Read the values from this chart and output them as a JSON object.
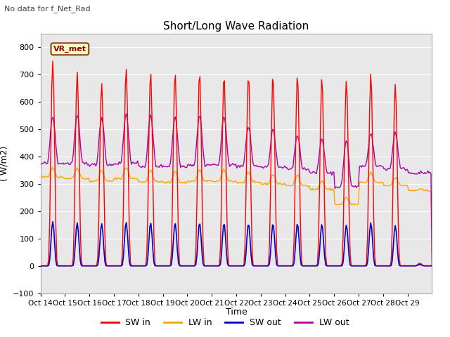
{
  "title": "Short/Long Wave Radiation",
  "subtitle": "No data for f_Net_Rad",
  "ylabel": "( W/m2)",
  "xlabel": "Time",
  "ylim": [
    -100,
    850
  ],
  "yticks": [
    -100,
    0,
    100,
    200,
    300,
    400,
    500,
    600,
    700,
    800
  ],
  "xtick_labels": [
    "Oct 14",
    "Oct 15",
    "Oct 16",
    "Oct 17",
    "Oct 18",
    "Oct 19",
    "Oct 20",
    "Oct 21",
    "Oct 22",
    "Oct 23",
    "Oct 24",
    "Oct 25",
    "Oct 26",
    "Oct 27",
    "Oct 28",
    "Oct 29"
  ],
  "legend_labels": [
    "SW in",
    "LW in",
    "SW out",
    "LW out"
  ],
  "legend_colors": [
    "#ff0000",
    "#ffa500",
    "#0000cc",
    "#aa00aa"
  ],
  "plot_bg": "#e8e8e8",
  "vr_met_label": "VR_met",
  "n_days": 16,
  "sw_in_peaks": [
    750,
    710,
    670,
    725,
    710,
    710,
    710,
    700,
    700,
    700,
    700,
    690,
    680,
    705,
    665,
    10
  ],
  "sw_out_peaks": [
    162,
    158,
    155,
    160,
    158,
    158,
    158,
    157,
    155,
    155,
    155,
    153,
    150,
    158,
    148,
    5
  ],
  "lw_in_base": [
    325,
    320,
    310,
    320,
    308,
    305,
    310,
    310,
    305,
    300,
    295,
    280,
    225,
    305,
    295,
    275
  ],
  "lw_in_day_bump": [
    35,
    38,
    40,
    40,
    42,
    42,
    40,
    40,
    38,
    35,
    35,
    30,
    25,
    35,
    30,
    5
  ],
  "lw_out_night": [
    375,
    375,
    370,
    375,
    365,
    365,
    370,
    370,
    365,
    360,
    355,
    340,
    290,
    365,
    355,
    340
  ],
  "lw_out_day_peak": [
    545,
    550,
    545,
    555,
    550,
    545,
    550,
    545,
    510,
    500,
    480,
    465,
    460,
    485,
    490,
    340
  ]
}
